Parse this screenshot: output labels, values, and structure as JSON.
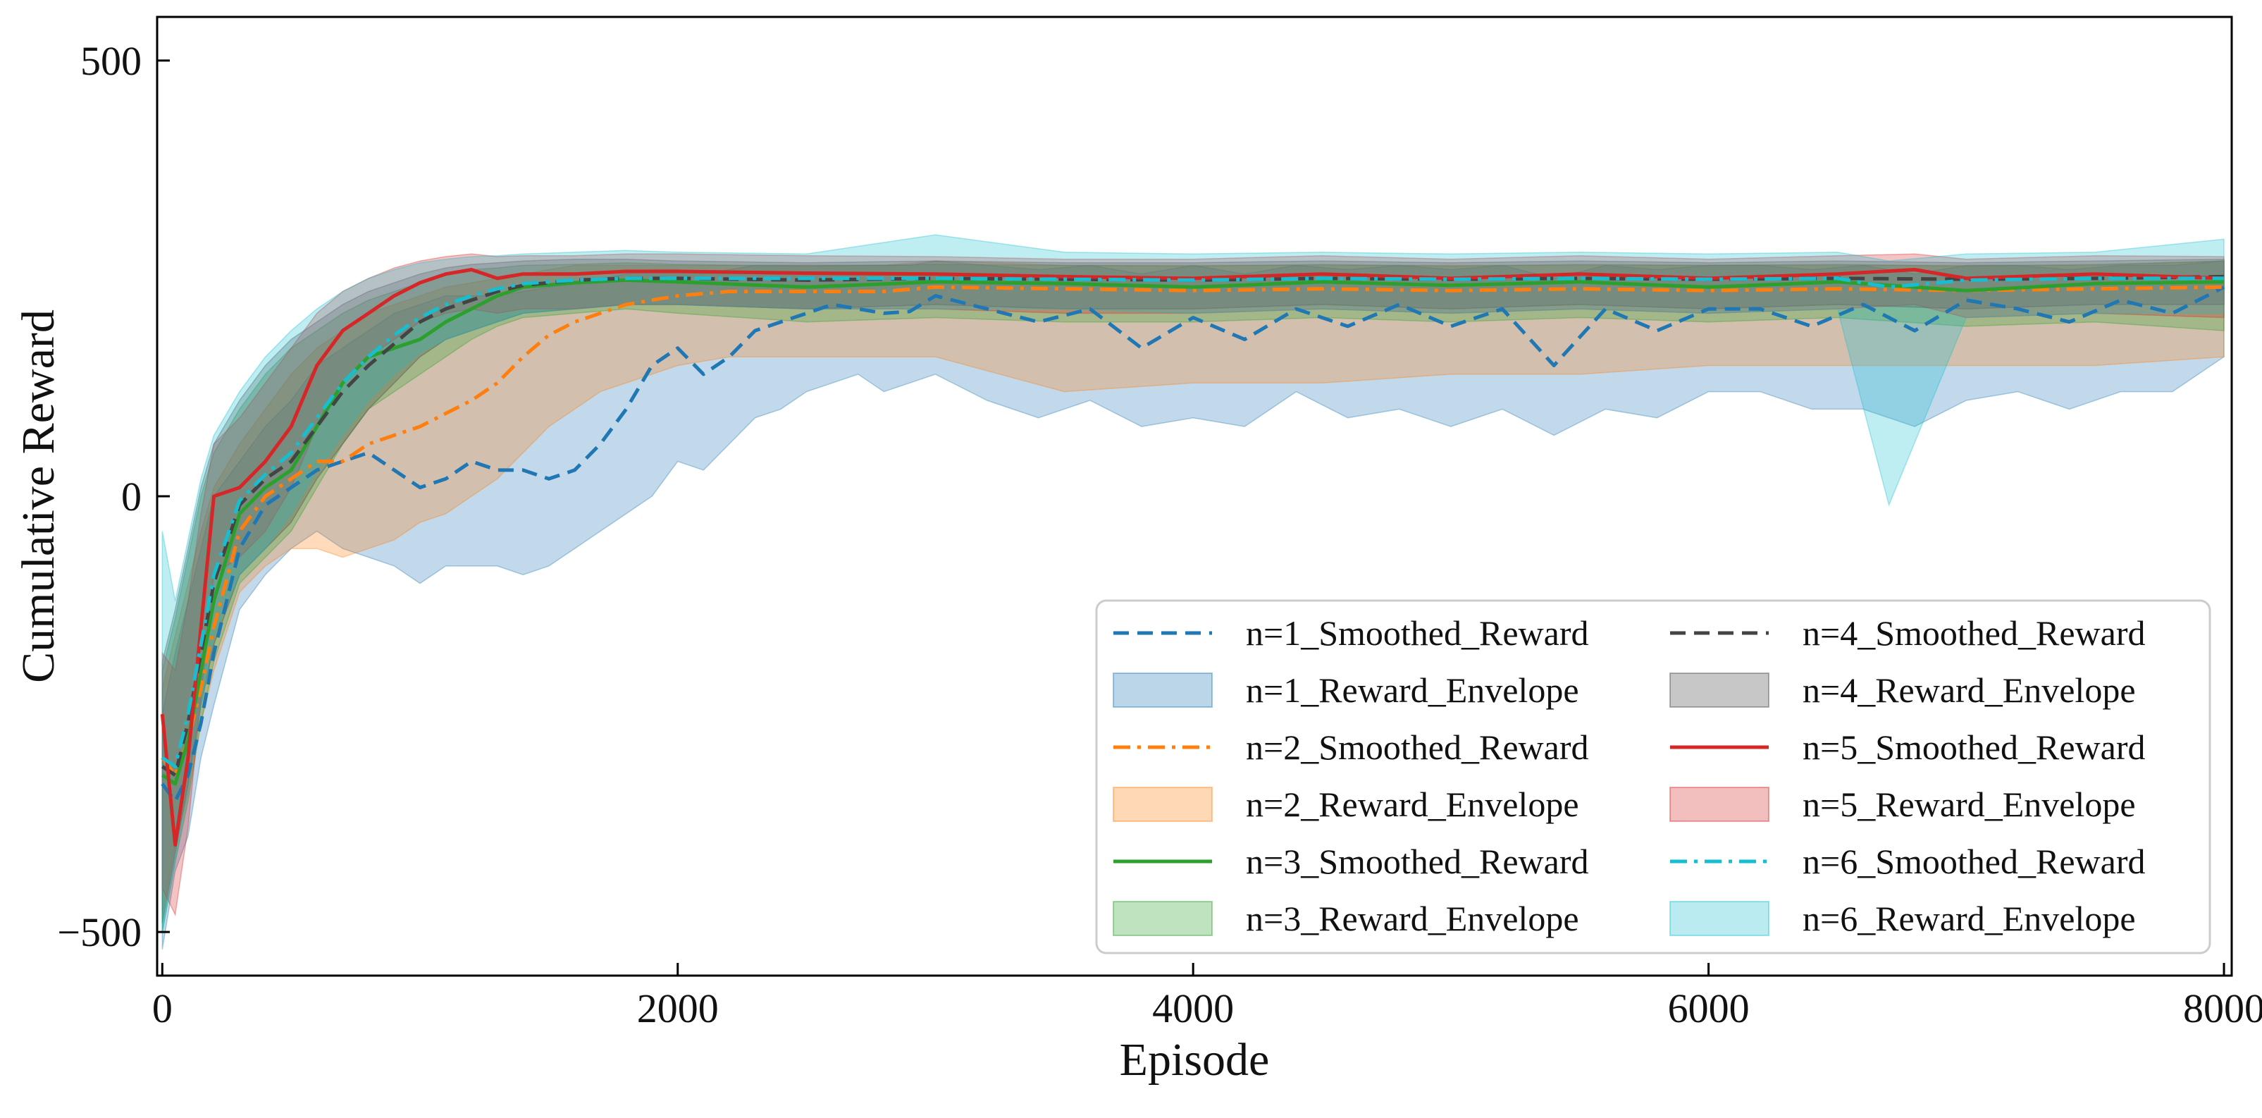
{
  "chart_data": {
    "type": "line",
    "title": "",
    "xlabel": "Episode",
    "ylabel": "Cumulative Reward",
    "xlim": [
      -20,
      8030
    ],
    "ylim": [
      -550,
      550
    ],
    "xticks": [
      0,
      2000,
      4000,
      6000,
      8000
    ],
    "yticks": [
      -500,
      0,
      500
    ],
    "xtick_labels": [
      "0",
      "2000",
      "4000",
      "6000",
      "8000"
    ],
    "ytick_labels": [
      "−500",
      "0",
      "500"
    ],
    "grid": false,
    "legend": {
      "placement": "lower-right",
      "columns": 2
    },
    "series": [
      {
        "name": "n=1_Smoothed_Reward",
        "envelope_name": "n=1_Reward_Envelope",
        "color": "#1f77b4",
        "dash": "dashed",
        "x": [
          0,
          50,
          100,
          150,
          200,
          300,
          400,
          500,
          600,
          700,
          800,
          900,
          1000,
          1100,
          1200,
          1300,
          1400,
          1500,
          1600,
          1700,
          1800,
          1900,
          2000,
          2100,
          2200,
          2300,
          2400,
          2500,
          2600,
          2700,
          2800,
          2900,
          3000,
          3200,
          3400,
          3600,
          3800,
          4000,
          4200,
          4400,
          4600,
          4800,
          5000,
          5200,
          5400,
          5600,
          5800,
          6000,
          6200,
          6400,
          6600,
          6800,
          7000,
          7200,
          7400,
          7600,
          7800,
          8000
        ],
        "values": [
          -330,
          -350,
          -320,
          -260,
          -180,
          -60,
          -10,
          10,
          30,
          40,
          50,
          30,
          10,
          20,
          40,
          30,
          30,
          20,
          30,
          60,
          100,
          150,
          170,
          140,
          160,
          190,
          200,
          210,
          220,
          215,
          210,
          212,
          230,
          215,
          200,
          215,
          170,
          205,
          180,
          215,
          195,
          220,
          195,
          215,
          150,
          215,
          190,
          215,
          215,
          195,
          220,
          190,
          225,
          215,
          200,
          225,
          210,
          240
        ],
        "env_lower": [
          -520,
          -430,
          -390,
          -300,
          -240,
          -130,
          -90,
          -60,
          -40,
          -60,
          -70,
          -80,
          -100,
          -80,
          -80,
          -80,
          -90,
          -80,
          -60,
          -40,
          -20,
          0,
          40,
          30,
          60,
          90,
          100,
          120,
          130,
          140,
          120,
          130,
          140,
          110,
          90,
          110,
          80,
          90,
          80,
          120,
          90,
          100,
          80,
          100,
          70,
          100,
          90,
          120,
          120,
          100,
          100,
          80,
          110,
          120,
          100,
          120,
          120,
          160
        ],
        "env_upper": [
          -250,
          -180,
          -120,
          -60,
          0,
          40,
          80,
          110,
          150,
          170,
          190,
          210,
          220,
          230,
          230,
          230,
          235,
          240,
          245,
          250,
          255,
          260,
          260,
          255,
          260,
          265,
          265,
          265,
          265,
          265,
          265,
          265,
          270,
          265,
          260,
          265,
          255,
          265,
          255,
          265,
          260,
          265,
          260,
          265,
          250,
          265,
          260,
          265,
          265,
          260,
          265,
          255,
          265,
          265,
          260,
          265,
          265,
          270
        ]
      },
      {
        "name": "n=2_Smoothed_Reward",
        "envelope_name": "n=2_Reward_Envelope",
        "color": "#ff7f0e",
        "dash": "dashdot",
        "x": [
          0,
          50,
          100,
          150,
          200,
          300,
          400,
          500,
          600,
          700,
          800,
          900,
          1000,
          1100,
          1200,
          1300,
          1400,
          1500,
          1600,
          1700,
          1800,
          1900,
          2000,
          2200,
          2400,
          2600,
          2800,
          3000,
          3500,
          4000,
          4500,
          5000,
          5500,
          6000,
          6500,
          7000,
          7500,
          8000
        ],
        "values": [
          -300,
          -320,
          -280,
          -220,
          -150,
          -40,
          0,
          20,
          40,
          40,
          60,
          70,
          80,
          95,
          110,
          130,
          160,
          185,
          200,
          210,
          220,
          225,
          230,
          235,
          235,
          235,
          235,
          240,
          238,
          236,
          238,
          236,
          238,
          236,
          238,
          236,
          238,
          240
        ],
        "env_lower": [
          -480,
          -400,
          -340,
          -260,
          -200,
          -110,
          -80,
          -60,
          -60,
          -70,
          -60,
          -50,
          -30,
          -20,
          0,
          20,
          50,
          80,
          100,
          120,
          130,
          140,
          150,
          160,
          160,
          160,
          160,
          160,
          120,
          130,
          130,
          140,
          140,
          150,
          150,
          150,
          150,
          160
        ],
        "env_upper": [
          -220,
          -160,
          -100,
          -40,
          10,
          60,
          100,
          140,
          170,
          190,
          210,
          220,
          230,
          240,
          245,
          250,
          255,
          260,
          265,
          265,
          265,
          265,
          265,
          265,
          265,
          265,
          265,
          270,
          265,
          265,
          265,
          265,
          265,
          265,
          265,
          265,
          265,
          270
        ]
      },
      {
        "name": "n=3_Smoothed_Reward",
        "envelope_name": "n=3_Reward_Envelope",
        "color": "#2ca02c",
        "dash": "solid",
        "x": [
          0,
          50,
          100,
          150,
          200,
          300,
          400,
          500,
          600,
          700,
          800,
          900,
          1000,
          1100,
          1200,
          1300,
          1400,
          1600,
          1800,
          2000,
          2500,
          3000,
          3500,
          4000,
          4500,
          5000,
          5500,
          6000,
          6500,
          7000,
          7500,
          8000
        ],
        "values": [
          -320,
          -330,
          -280,
          -200,
          -120,
          -20,
          10,
          30,
          80,
          130,
          160,
          170,
          180,
          200,
          215,
          230,
          240,
          245,
          248,
          246,
          240,
          246,
          244,
          240,
          246,
          242,
          246,
          240,
          246,
          236,
          244,
          246
        ],
        "env_lower": [
          -500,
          -420,
          -350,
          -260,
          -190,
          -100,
          -70,
          -40,
          10,
          60,
          100,
          120,
          140,
          160,
          180,
          195,
          205,
          210,
          215,
          210,
          200,
          205,
          200,
          200,
          205,
          200,
          205,
          200,
          205,
          195,
          200,
          190
        ],
        "env_upper": [
          -200,
          -140,
          -70,
          0,
          50,
          100,
          140,
          170,
          190,
          210,
          225,
          235,
          245,
          255,
          260,
          262,
          265,
          266,
          268,
          266,
          264,
          266,
          265,
          264,
          266,
          264,
          266,
          265,
          266,
          264,
          266,
          270
        ]
      },
      {
        "name": "n=4_Smoothed_Reward",
        "envelope_name": "n=4_Reward_Envelope",
        "color": "#444444",
        "dash": "dashed",
        "x": [
          0,
          50,
          100,
          150,
          200,
          300,
          400,
          500,
          600,
          700,
          800,
          900,
          1000,
          1100,
          1200,
          1300,
          1400,
          1600,
          1800,
          2000,
          2500,
          3000,
          3500,
          4000,
          4500,
          5000,
          5500,
          6000,
          6500,
          7000,
          7500,
          8000
        ],
        "values": [
          -310,
          -320,
          -260,
          -180,
          -100,
          -10,
          20,
          40,
          80,
          120,
          150,
          175,
          200,
          215,
          225,
          235,
          242,
          248,
          250,
          250,
          248,
          250,
          249,
          248,
          250,
          249,
          250,
          249,
          250,
          249,
          250,
          252
        ],
        "env_lower": [
          -490,
          -410,
          -330,
          -240,
          -170,
          -90,
          -60,
          -30,
          20,
          60,
          100,
          130,
          160,
          180,
          190,
          200,
          210,
          215,
          220,
          220,
          215,
          220,
          215,
          215,
          220,
          215,
          220,
          215,
          220,
          215,
          220,
          220
        ],
        "env_upper": [
          -190,
          -130,
          -60,
          10,
          60,
          110,
          150,
          180,
          200,
          220,
          235,
          245,
          255,
          262,
          266,
          268,
          270,
          272,
          272,
          270,
          268,
          270,
          268,
          268,
          270,
          268,
          270,
          268,
          270,
          268,
          270,
          272
        ]
      },
      {
        "name": "n=5_Smoothed_Reward",
        "envelope_name": "n=5_Reward_Envelope",
        "color": "#d62728",
        "dash": "solid",
        "x": [
          0,
          50,
          100,
          150,
          200,
          300,
          400,
          500,
          600,
          700,
          800,
          900,
          1000,
          1100,
          1200,
          1300,
          1400,
          1600,
          1800,
          2000,
          2500,
          3000,
          3500,
          4000,
          4500,
          5000,
          5500,
          6000,
          6500,
          6800,
          7000,
          7500,
          8000
        ],
        "values": [
          -250,
          -400,
          -300,
          -150,
          0,
          10,
          40,
          80,
          150,
          190,
          210,
          230,
          245,
          255,
          260,
          250,
          255,
          255,
          258,
          258,
          256,
          255,
          252,
          250,
          255,
          250,
          255,
          250,
          255,
          260,
          250,
          255,
          250
        ],
        "env_lower": [
          -450,
          -480,
          -380,
          -230,
          -90,
          -70,
          -40,
          10,
          80,
          130,
          160,
          180,
          200,
          210,
          215,
          210,
          215,
          215,
          220,
          220,
          215,
          215,
          210,
          210,
          215,
          210,
          215,
          210,
          215,
          220,
          205,
          210,
          205
        ],
        "env_upper": [
          -180,
          -200,
          -120,
          -20,
          60,
          90,
          130,
          170,
          210,
          235,
          250,
          262,
          270,
          275,
          278,
          275,
          276,
          276,
          278,
          278,
          276,
          275,
          272,
          272,
          276,
          272,
          276,
          272,
          276,
          278,
          272,
          276,
          275
        ]
      },
      {
        "name": "n=6_Smoothed_Reward",
        "envelope_name": "n=6_Reward_Envelope",
        "color": "#17becf",
        "dash": "dashdot",
        "x": [
          0,
          50,
          100,
          150,
          200,
          300,
          400,
          500,
          600,
          700,
          800,
          900,
          1000,
          1100,
          1200,
          1300,
          1400,
          1600,
          1800,
          2000,
          2500,
          3000,
          3500,
          4000,
          4500,
          5000,
          5500,
          6000,
          6500,
          6700,
          7000,
          7500,
          8000
        ],
        "values": [
          -300,
          -310,
          -250,
          -170,
          -90,
          -5,
          25,
          50,
          90,
          130,
          160,
          185,
          205,
          220,
          230,
          238,
          244,
          248,
          250,
          250,
          250,
          250,
          249,
          248,
          250,
          249,
          250,
          249,
          250,
          240,
          248,
          250,
          250
        ],
        "env_lower": [
          -500,
          -420,
          -340,
          -240,
          -160,
          -90,
          -60,
          -20,
          30,
          70,
          110,
          140,
          165,
          180,
          190,
          200,
          210,
          215,
          220,
          220,
          215,
          215,
          215,
          210,
          215,
          210,
          215,
          210,
          215,
          -10,
          205,
          210,
          210
        ],
        "env_upper": [
          -40,
          -120,
          -50,
          20,
          70,
          120,
          160,
          190,
          215,
          235,
          250,
          260,
          268,
          272,
          275,
          276,
          278,
          280,
          282,
          280,
          278,
          300,
          280,
          278,
          280,
          278,
          280,
          278,
          280,
          270,
          278,
          280,
          295
        ]
      }
    ]
  }
}
